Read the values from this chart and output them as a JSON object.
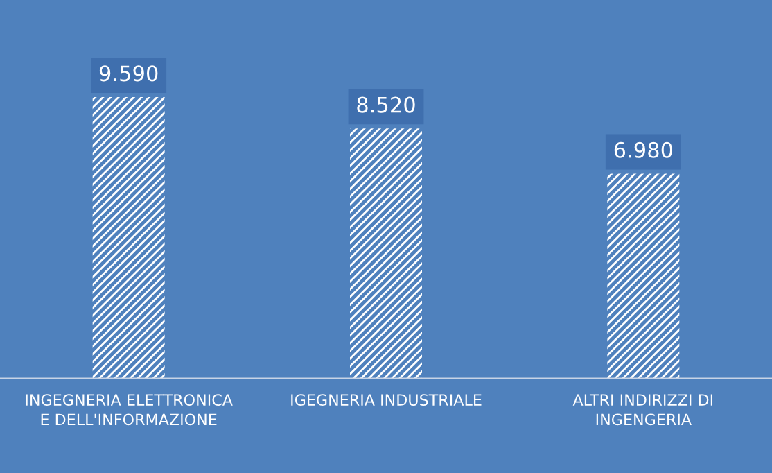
{
  "chart_data": {
    "type": "bar",
    "categories": [
      "INGEGNERIA ELETTRONICA E DELL'INFORMAZIONE",
      "IGEGNERIA INDUSTRIALE",
      "ALTRI INDIRIZZI DI INGENGERIA"
    ],
    "values": [
      9590,
      8520,
      6980
    ],
    "value_labels": [
      "9.590",
      "8.520",
      "6.980"
    ],
    "color": "#ffffff",
    "ylim": [
      0,
      12900
    ],
    "tick_labels": "x",
    "grid": false,
    "legend": false
  }
}
